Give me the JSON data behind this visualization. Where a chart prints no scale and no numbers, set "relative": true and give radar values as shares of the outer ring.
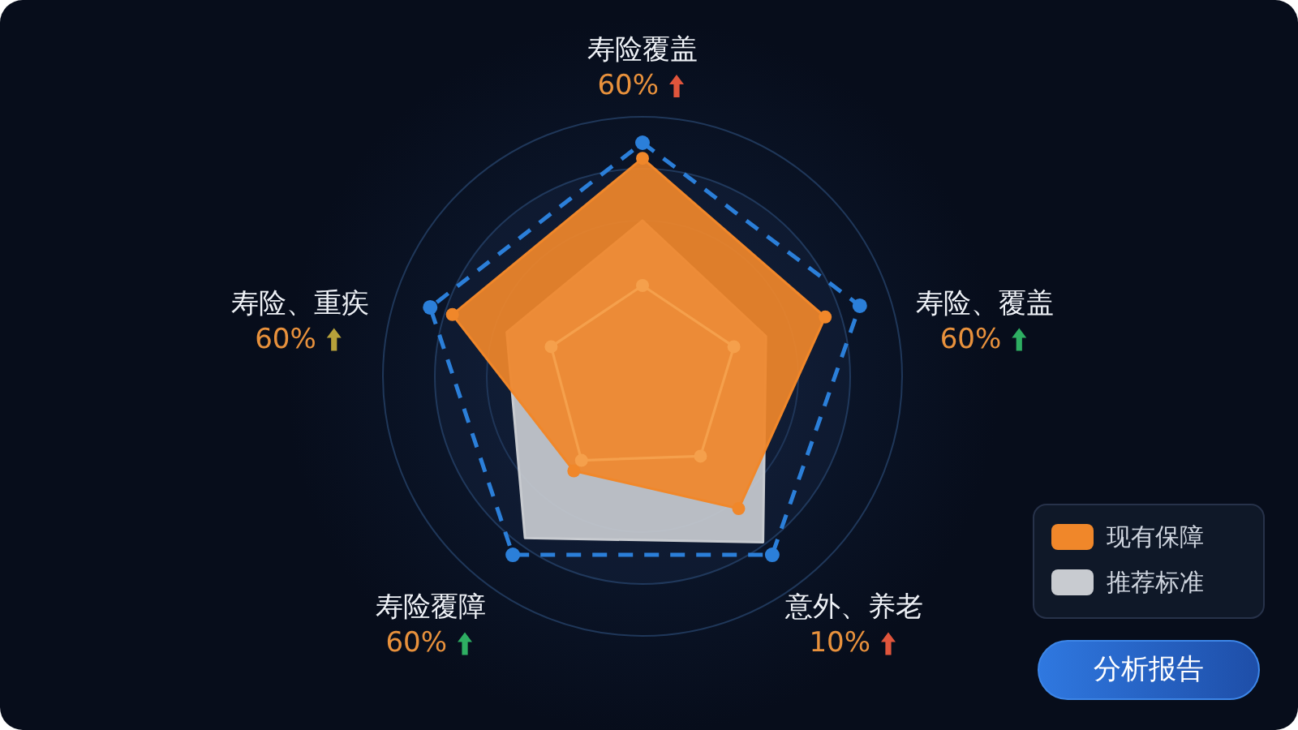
{
  "chart_data": {
    "type": "radar",
    "relative": true,
    "categories": [
      "寿险覆盖",
      "寿险、覆盖",
      "意外、养老",
      "寿险覆障",
      "寿险、重疾"
    ],
    "series": [
      {
        "name": "现有保障",
        "color": "#f0872a",
        "values": [
          0.84,
          0.74,
          0.63,
          0.45,
          0.77
        ]
      },
      {
        "name": "推荐标准",
        "color": "#c8cbd0",
        "values": [
          0.6,
          0.5,
          0.79,
          0.77,
          0.55
        ],
        "marker": "none"
      },
      {
        "color": "#2b7fd9",
        "values": [
          0.9,
          0.88,
          0.85,
          0.85,
          0.86
        ],
        "line_style": "dashed"
      },
      {
        "color": "#f5a04c",
        "values": [
          0.35,
          0.37,
          0.38,
          0.4,
          0.37
        ]
      }
    ],
    "marker": "circle",
    "grid": true,
    "legend": "bottom right",
    "annotations": [
      "60%",
      "60%",
      "10%",
      "60%",
      "60%",
      "分析报告"
    ]
  }
}
